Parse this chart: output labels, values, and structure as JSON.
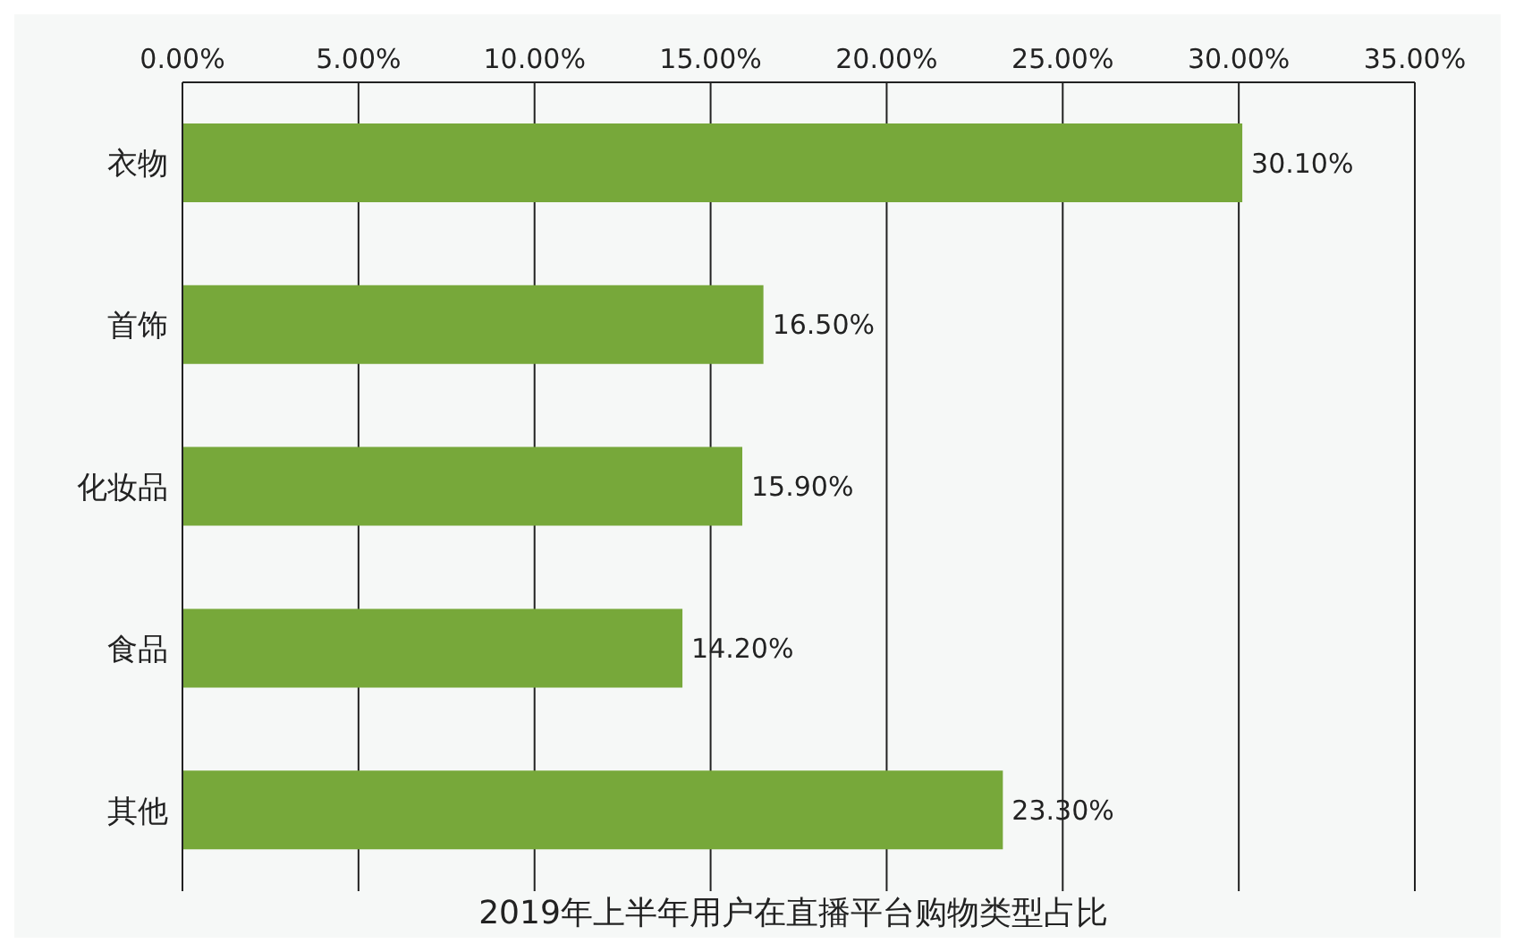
{
  "chart_data": {
    "type": "bar",
    "orientation": "horizontal",
    "title": "2019年上半年用户在直播平台购物类型占比",
    "categories": [
      "衣物",
      "首饰",
      "化妆品",
      "食品",
      "其他"
    ],
    "values": [
      30.1,
      16.5,
      15.9,
      14.2,
      23.3
    ],
    "value_labels": [
      "30.10%",
      "16.50%",
      "15.90%",
      "14.20%",
      "23.30%"
    ],
    "color": "#77a83a",
    "xlim": [
      0,
      35
    ],
    "xticks": [
      {
        "value": 0,
        "label": "0.00%"
      },
      {
        "value": 5,
        "label": "5.00%"
      },
      {
        "value": 10,
        "label": "10.00%"
      },
      {
        "value": 15,
        "label": "15.00%"
      },
      {
        "value": 20,
        "label": "20.00%"
      },
      {
        "value": 25,
        "label": "25.00%"
      },
      {
        "value": 30,
        "label": "30.00%"
      },
      {
        "value": 35,
        "label": "35.00%"
      }
    ],
    "grid": "x",
    "legend": false
  }
}
